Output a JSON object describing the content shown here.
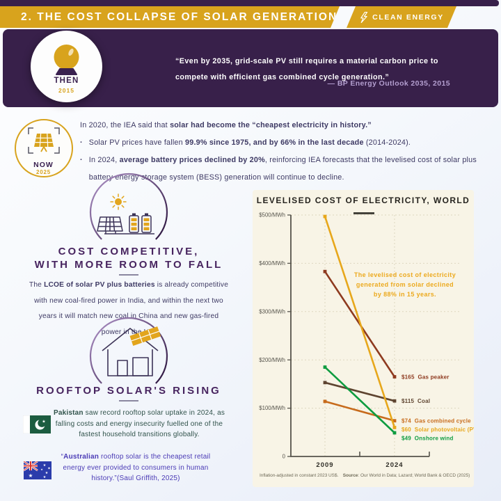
{
  "header": {
    "title": "2. THE COST COLLAPSE OF SOLAR GENERATION",
    "badge_label": "CLEAN ENERGY"
  },
  "then_banner": {
    "label": "THEN",
    "year": "2015",
    "quote": "“Even by 2035, grid-scale PV still requires a material carbon price to compete with efficient gas combined cycle generation.”",
    "attribution": "— BP Energy Outlook 2035, 2015"
  },
  "now_section": {
    "label": "NOW",
    "year": "2025",
    "intro": [
      [
        "In 2020, the IEA said that ",
        0
      ],
      [
        "solar had become the “cheapest electricity in history.”",
        1
      ]
    ],
    "bullet_glyph": "·",
    "bullets": [
      [
        [
          "Solar PV prices have fallen ",
          0
        ],
        [
          "99.9% since 1975, and by 66% in the last decade",
          1
        ],
        [
          " (2014-2024).",
          0
        ]
      ],
      [
        [
          "In 2024, ",
          0
        ],
        [
          "average battery prices declined by 20%",
          1
        ],
        [
          ", reinforcing IEA forecasts that the levelised cost of solar plus battery energy storage system (BESS) generation will continue to decline.",
          0
        ]
      ]
    ]
  },
  "cost_card": {
    "heading_line1": "COST COMPETITIVE,",
    "heading_line2": "WITH MORE ROOM TO FALL",
    "body": [
      [
        "The ",
        0
      ],
      [
        "LCOE of solar PV plus batteries",
        1
      ],
      [
        " is already competitive with new coal-fired power in India, and within the next two years it will match new coal in China and new gas-fired power in the US.",
        0
      ]
    ]
  },
  "rooftop_card": {
    "heading": "ROOFTOP SOLAR'S RISING",
    "pakistan": [
      [
        "Pakistan",
        1
      ],
      [
        " saw record rooftop solar uptake in 2024, as falling costs and energy insecurity fuelled one of the fastest household transitions globally.",
        0
      ]
    ],
    "australia": [
      [
        "“",
        0
      ],
      [
        "Australian",
        1
      ],
      [
        " rooftop solar is the cheapest retail energy ever provided to consumers in human history.”(Saul Griffith, 2025)",
        0
      ]
    ]
  },
  "chart_data": {
    "type": "line",
    "title": "LEVELISED COST OF ELECTRICITY, WORLD",
    "xlabel": "",
    "ylabel": "$/MWh",
    "categories": [
      "2009",
      "2024"
    ],
    "ylim": [
      0,
      500
    ],
    "ytick_values": [
      500,
      400,
      300,
      200,
      100,
      0
    ],
    "ytick_labels": [
      "$500/MWh",
      "$400/MWh",
      "$300/MWh",
      "$200/MWh",
      "$100/MWh",
      "0"
    ],
    "grid": true,
    "legend_position": "end-labels",
    "series": [
      {
        "name": "Gas peaker",
        "color": "#8e3a1f",
        "values": [
          383,
          165
        ]
      },
      {
        "name": "Coal",
        "color": "#5e4430",
        "values": [
          153,
          115
        ]
      },
      {
        "name": "Gas combined cycle",
        "color": "#c76b1c",
        "values": [
          114,
          74
        ]
      },
      {
        "name": "Onshore wind",
        "color": "#0e9c40",
        "values": [
          185,
          49
        ]
      },
      {
        "name": "Solar photovoltaic (PV)",
        "color": "#e7a71b",
        "values": [
          497,
          60
        ]
      }
    ],
    "annotation": {
      "color": "#eca91d",
      "lines": [
        "The levelised cost of electricity",
        "generated from solar declined",
        "by 88% in 15 years."
      ]
    },
    "footnote": [
      [
        "Inflation-adjusted in constant 2023 US$. ",
        0
      ],
      [
        "Source",
        1
      ],
      [
        ": Our World in Data; Lazard; World Bank & OECD (2025)",
        0
      ]
    ]
  },
  "colors": {
    "gold": "#d8a31d",
    "purple": "#38204a",
    "heading_purple": "#47245f",
    "body_text": "#3d3963",
    "australia_blue": "#4a3ab5",
    "chart_panel": "#f8f4e6"
  }
}
